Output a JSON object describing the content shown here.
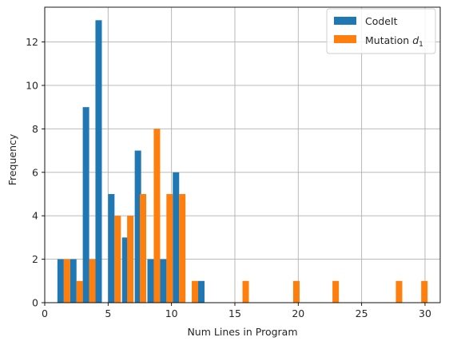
{
  "chart_data": {
    "type": "bar",
    "xlabel": "Num Lines in Program",
    "ylabel": "Frequency",
    "xlim": [
      0,
      31.2
    ],
    "ylim": [
      0,
      13.6
    ],
    "xticks": [
      0,
      5,
      10,
      15,
      20,
      25,
      30
    ],
    "yticks": [
      0,
      2,
      4,
      6,
      8,
      10,
      12
    ],
    "grid": true,
    "legend": {
      "position": "top-right",
      "entries": [
        {
          "label_text": "CodeIt",
          "color": "#1f77b4"
        },
        {
          "label_text": "Mutation ",
          "subscript_base": "d",
          "subscript": "1",
          "color": "#ff7f0e"
        }
      ]
    },
    "bin_width": 1.01,
    "series": [
      {
        "name": "CodeIt",
        "color": "#1f77b4",
        "bins": [
          {
            "x": 1.0,
            "value": 2
          },
          {
            "x": 2.0,
            "value": 2
          },
          {
            "x": 3.0,
            "value": 9
          },
          {
            "x": 4.0,
            "value": 13
          },
          {
            "x": 5.0,
            "value": 5
          },
          {
            "x": 6.1,
            "value": 3
          },
          {
            "x": 7.1,
            "value": 7
          },
          {
            "x": 8.1,
            "value": 2
          },
          {
            "x": 9.1,
            "value": 2
          },
          {
            "x": 10.1,
            "value": 6
          },
          {
            "x": 12.1,
            "value": 1
          }
        ]
      },
      {
        "name": "Mutation d1",
        "color": "#ff7f0e",
        "bins": [
          {
            "x": 1.5,
            "value": 2
          },
          {
            "x": 2.5,
            "value": 1
          },
          {
            "x": 3.5,
            "value": 2
          },
          {
            "x": 5.5,
            "value": 4
          },
          {
            "x": 6.5,
            "value": 4
          },
          {
            "x": 7.5,
            "value": 5
          },
          {
            "x": 8.6,
            "value": 8
          },
          {
            "x": 9.6,
            "value": 5
          },
          {
            "x": 10.6,
            "value": 5
          },
          {
            "x": 11.6,
            "value": 1
          },
          {
            "x": 15.6,
            "value": 1
          },
          {
            "x": 19.6,
            "value": 1
          },
          {
            "x": 22.7,
            "value": 1
          },
          {
            "x": 27.7,
            "value": 1
          },
          {
            "x": 29.7,
            "value": 1
          }
        ]
      }
    ]
  }
}
